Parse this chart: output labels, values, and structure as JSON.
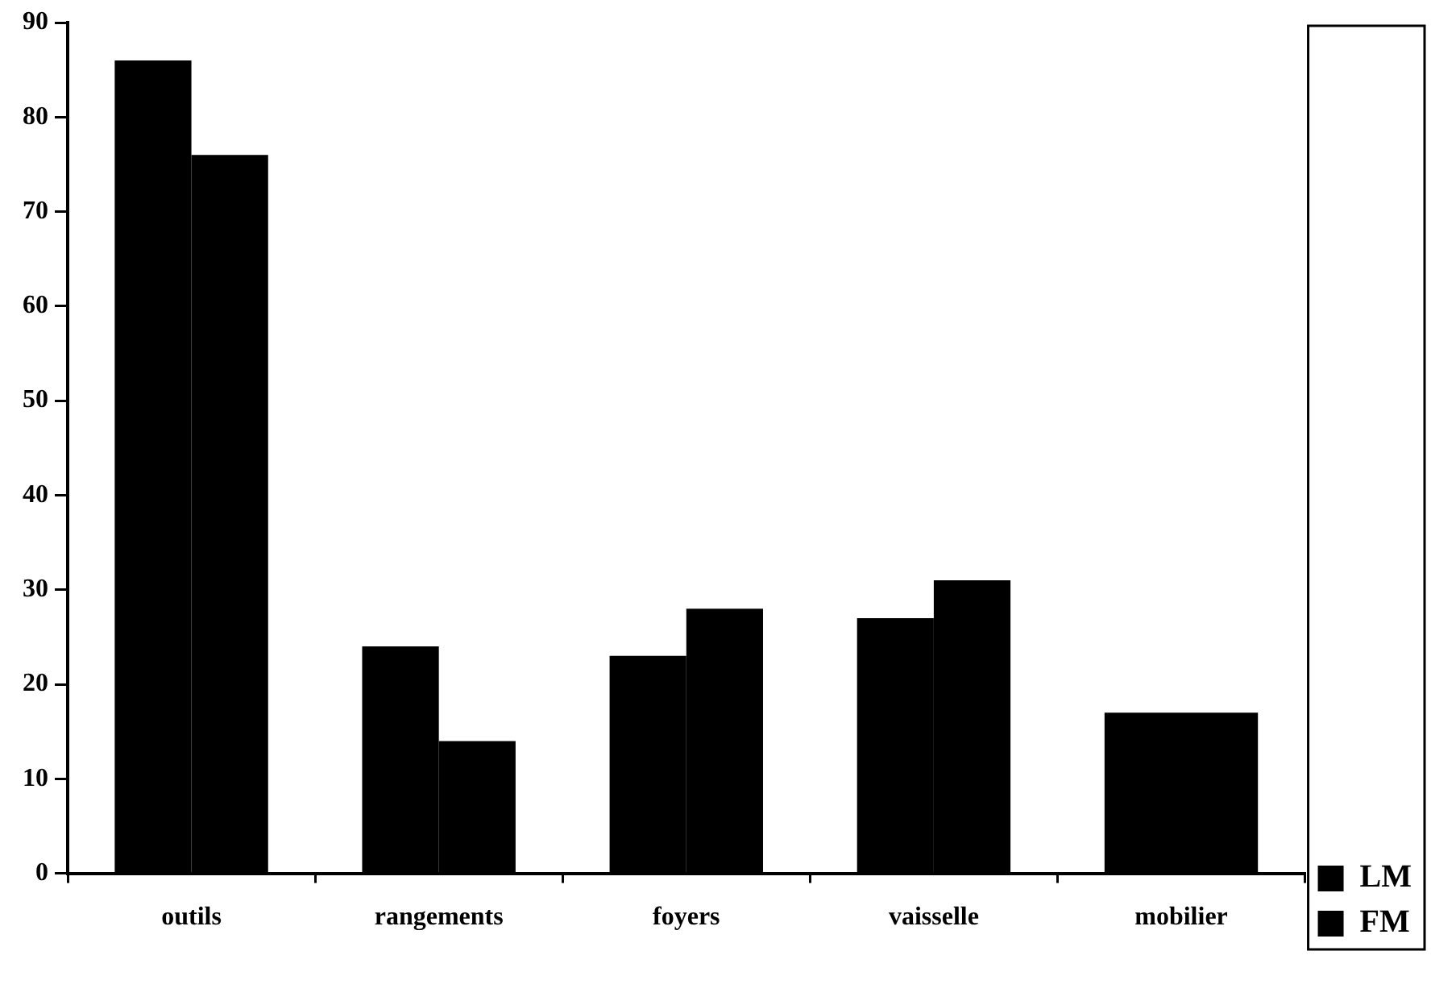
{
  "chart_data": {
    "type": "bar",
    "categories": [
      "outils",
      "rangements",
      "foyers",
      "vaisselle",
      "mobilier"
    ],
    "series": [
      {
        "name": "LM",
        "color": "#000000",
        "values": [
          86,
          24,
          23,
          27,
          17
        ]
      },
      {
        "name": "FM",
        "color": "#000000",
        "values": [
          76,
          14,
          28,
          31,
          17
        ]
      }
    ],
    "ylim": [
      0,
      90
    ],
    "yticks": [
      0,
      10,
      20,
      30,
      40,
      50,
      60,
      70,
      80,
      90
    ],
    "grid": false,
    "legend": "bottom right"
  }
}
